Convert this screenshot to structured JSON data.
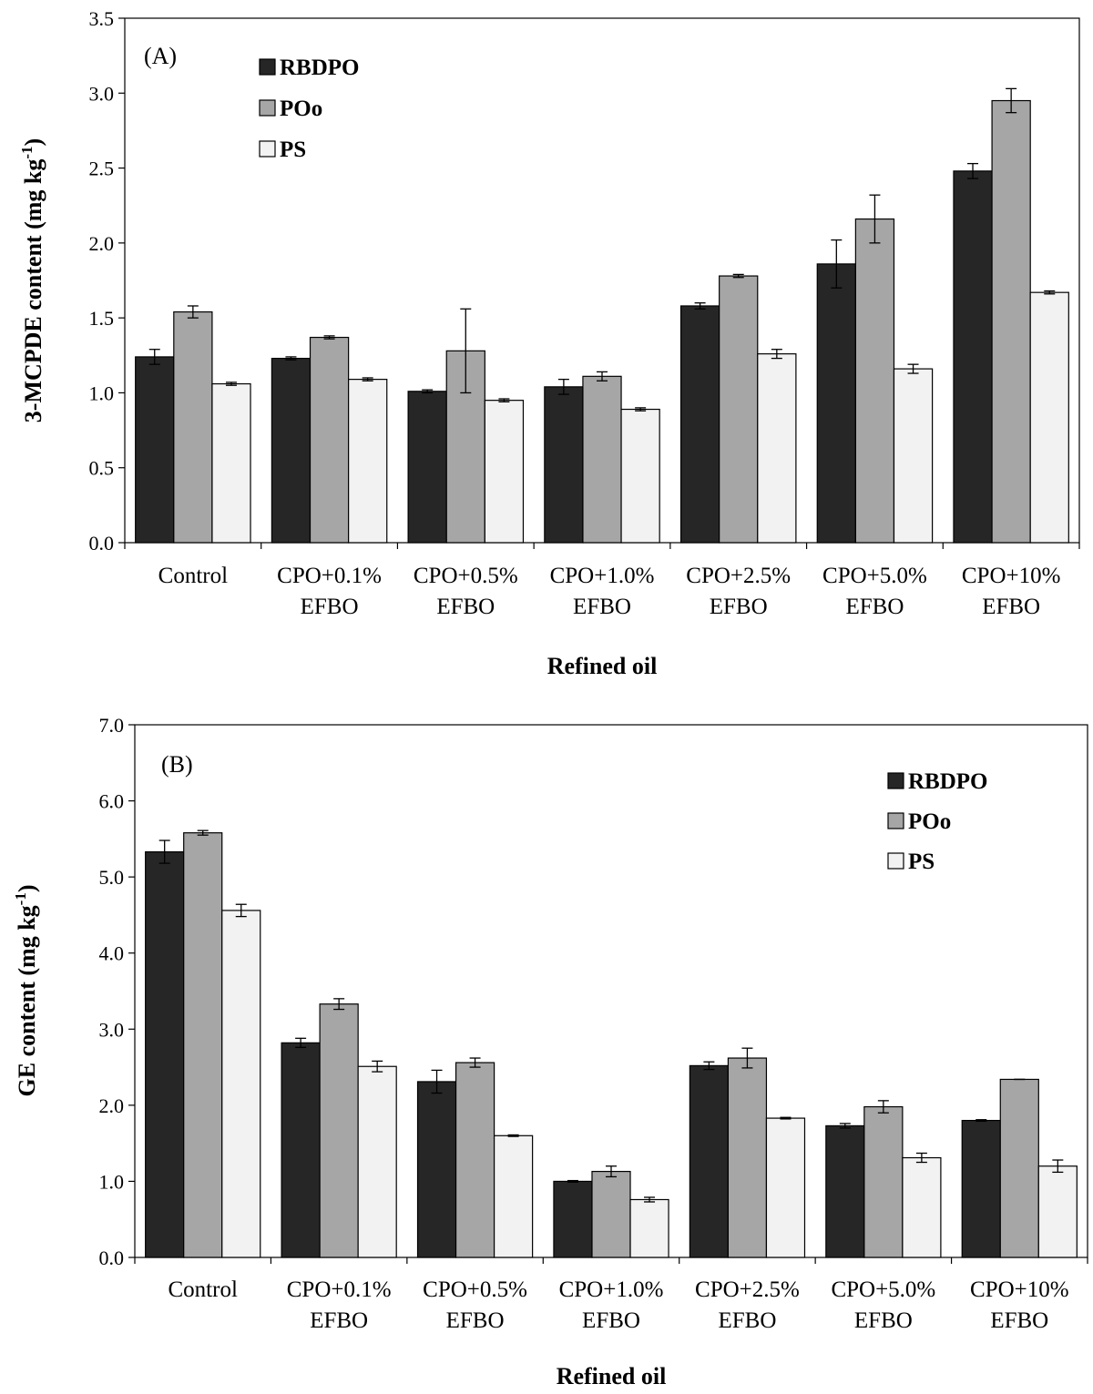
{
  "colors": {
    "RBDPO": "#262626",
    "POo": "#a6a6a6",
    "PS": "#f2f2f2",
    "stroke": "#000000"
  },
  "chart_data": [
    {
      "type": "bar",
      "panel_label": "(A)",
      "title": "",
      "xlabel": "Refined oil",
      "ylabel": "3-MCPDE content (mg kg",
      "ylabel_sup": "-1",
      "ylabel_close": ")",
      "ylim": [
        0,
        3.5
      ],
      "yticks": [
        "0.0",
        "0.5",
        "1.0",
        "1.5",
        "2.0",
        "2.5",
        "3.0",
        "3.5"
      ],
      "legend_position": "top-left",
      "categories": [
        [
          "Control"
        ],
        [
          "CPO+0.1%",
          "EFBO"
        ],
        [
          "CPO+0.5%",
          "EFBO"
        ],
        [
          "CPO+1.0%",
          "EFBO"
        ],
        [
          "CPO+2.5%",
          "EFBO"
        ],
        [
          "CPO+5.0%",
          "EFBO"
        ],
        [
          "CPO+10%",
          "EFBO"
        ]
      ],
      "series": [
        {
          "name": "RBDPO",
          "values": [
            1.24,
            1.23,
            1.01,
            1.04,
            1.58,
            1.86,
            2.48
          ],
          "errors": [
            0.05,
            0.01,
            0.01,
            0.05,
            0.02,
            0.16,
            0.05
          ]
        },
        {
          "name": "POo",
          "values": [
            1.54,
            1.37,
            1.28,
            1.11,
            1.78,
            2.16,
            2.95
          ],
          "errors": [
            0.04,
            0.01,
            0.28,
            0.03,
            0.01,
            0.16,
            0.08
          ]
        },
        {
          "name": "PS",
          "values": [
            1.06,
            1.09,
            0.95,
            0.89,
            1.26,
            1.16,
            1.67
          ],
          "errors": [
            0.01,
            0.01,
            0.01,
            0.01,
            0.03,
            0.03,
            0.01
          ]
        }
      ]
    },
    {
      "type": "bar",
      "panel_label": "(B)",
      "title": "",
      "xlabel": "Refined oil",
      "ylabel": "GE content (mg kg",
      "ylabel_sup": "-1",
      "ylabel_close": ")",
      "ylim": [
        0,
        7.0
      ],
      "yticks": [
        "0.0",
        "1.0",
        "2.0",
        "3.0",
        "4.0",
        "5.0",
        "6.0",
        "7.0"
      ],
      "legend_position": "top-right",
      "categories": [
        [
          "Control"
        ],
        [
          "CPO+0.1%",
          "EFBO"
        ],
        [
          "CPO+0.5%",
          "EFBO"
        ],
        [
          "CPO+1.0%",
          "EFBO"
        ],
        [
          "CPO+2.5%",
          "EFBO"
        ],
        [
          "CPO+5.0%",
          "EFBO"
        ],
        [
          "CPO+10%",
          "EFBO"
        ]
      ],
      "series": [
        {
          "name": "RBDPO",
          "values": [
            5.33,
            2.82,
            2.31,
            1.0,
            2.52,
            1.73,
            1.8
          ],
          "errors": [
            0.15,
            0.06,
            0.15,
            0.01,
            0.05,
            0.03,
            0.01
          ]
        },
        {
          "name": "POo",
          "values": [
            5.58,
            3.33,
            2.56,
            1.13,
            2.62,
            1.98,
            2.34
          ],
          "errors": [
            0.03,
            0.07,
            0.06,
            0.07,
            0.13,
            0.08,
            0.0
          ]
        },
        {
          "name": "PS",
          "values": [
            4.56,
            2.51,
            1.6,
            0.76,
            1.83,
            1.31,
            1.2
          ],
          "errors": [
            0.08,
            0.07,
            0.01,
            0.03,
            0.01,
            0.06,
            0.08
          ]
        }
      ]
    }
  ]
}
